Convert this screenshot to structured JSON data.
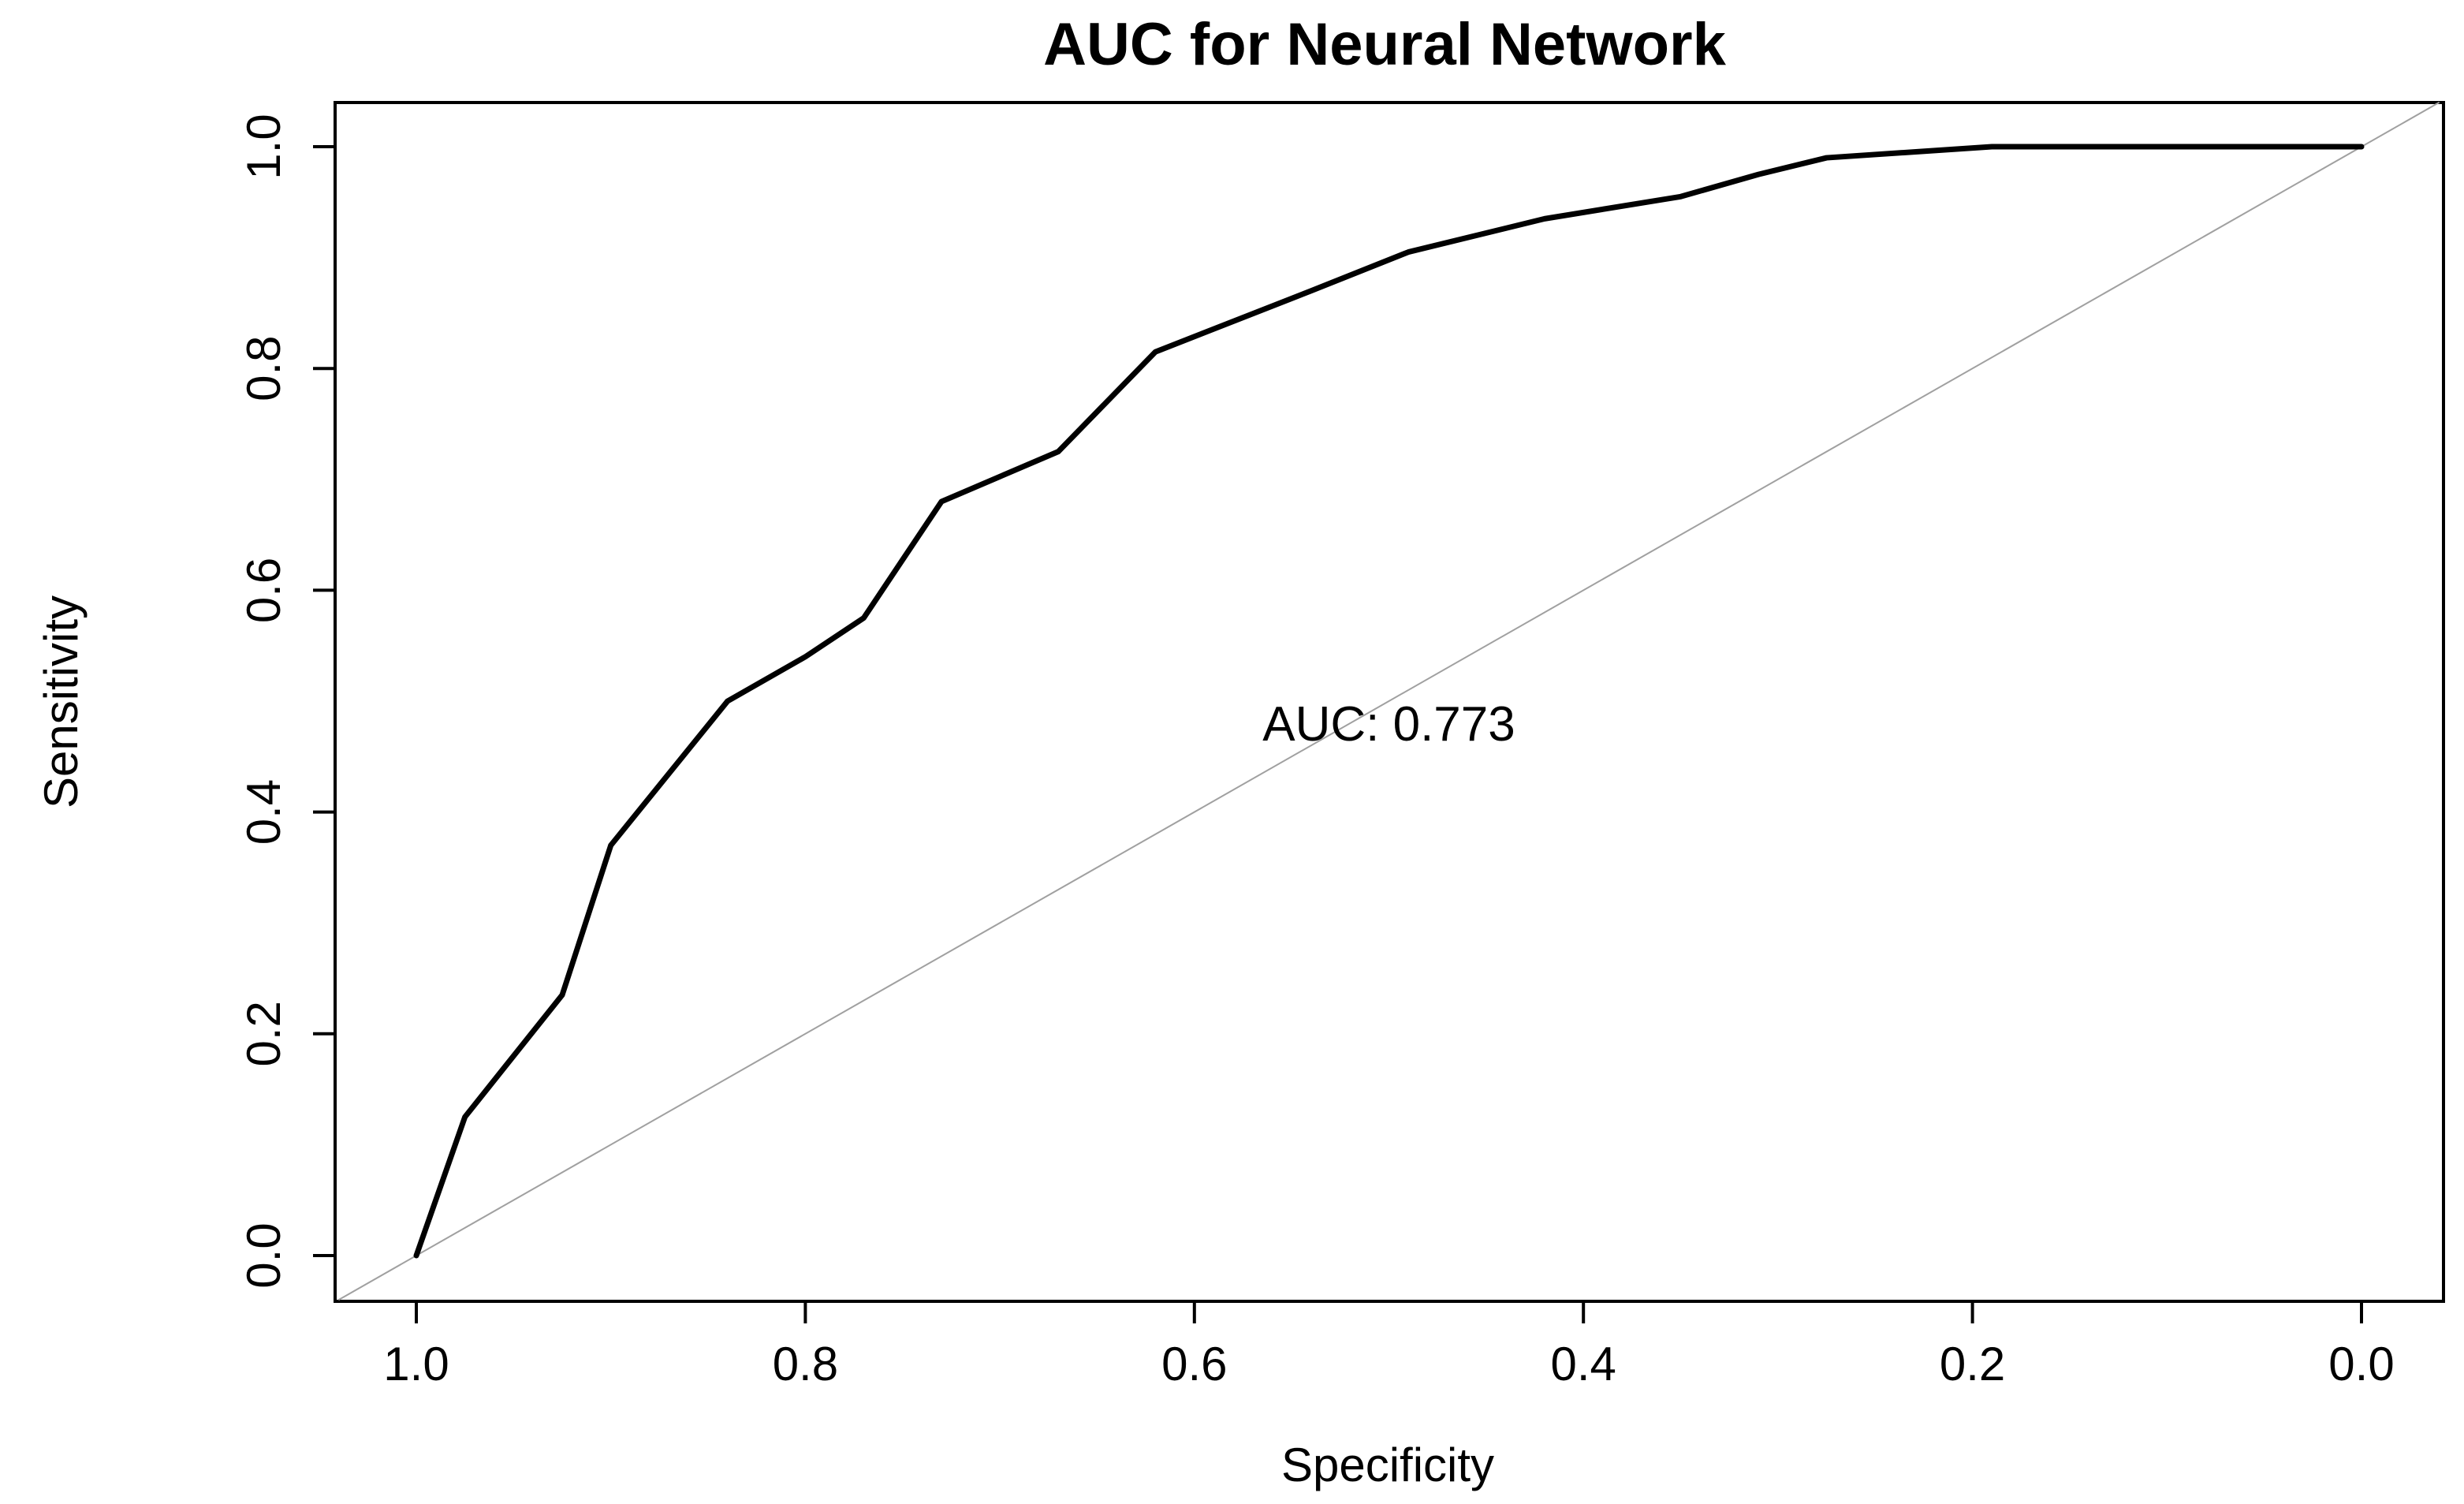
{
  "chart_data": {
    "type": "line",
    "title": "AUC for Neural Network",
    "xlabel": "Specificity",
    "ylabel": "Sensitivity",
    "xlim": [
      1.0,
      0.0
    ],
    "ylim": [
      0.0,
      1.0
    ],
    "x_reversed": true,
    "grid": false,
    "xticks": [
      1.0,
      0.8,
      0.6,
      0.4,
      0.2,
      0.0
    ],
    "xtick_labels": [
      "1.0",
      "0.8",
      "0.6",
      "0.4",
      "0.2",
      "0.0"
    ],
    "yticks": [
      0.0,
      0.2,
      0.4,
      0.6,
      0.8,
      1.0
    ],
    "ytick_labels": [
      "0.0",
      "0.2",
      "0.4",
      "0.6",
      "0.8",
      "1.0"
    ],
    "annotation": "AUC: 0.773",
    "annotation_pos": {
      "x": 0.5,
      "y": 0.48
    },
    "reference_line": {
      "x": [
        1.0,
        0.0
      ],
      "y": [
        0.0,
        1.0
      ],
      "color": "#a0a0a0"
    },
    "series": [
      {
        "color": "#000000",
        "x": [
          1.0,
          0.975,
          0.925,
          0.9,
          0.84,
          0.8,
          0.77,
          0.73,
          0.67,
          0.62,
          0.54,
          0.49,
          0.42,
          0.35,
          0.31,
          0.275,
          0.19,
          0.0
        ],
        "y": [
          0.0,
          0.125,
          0.235,
          0.37,
          0.5,
          0.54,
          0.575,
          0.68,
          0.725,
          0.815,
          0.87,
          0.905,
          0.935,
          0.955,
          0.975,
          0.99,
          1.0,
          1.0
        ]
      }
    ]
  }
}
